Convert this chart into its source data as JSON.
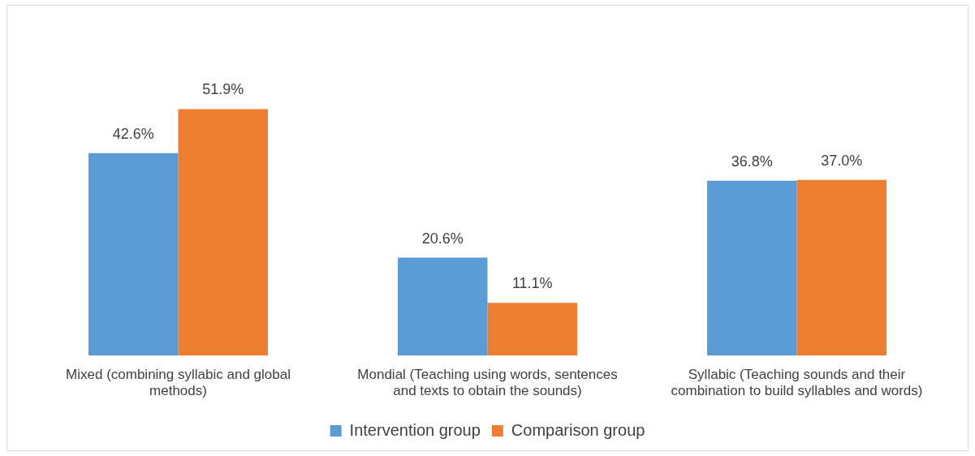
{
  "chart_data": {
    "type": "bar",
    "categories": [
      "Mixed (combining syllabic and global methods)",
      "Mondial (Teaching using words, sentences and texts to obtain the sounds)",
      "Syllabic (Teaching sounds and their combination to build syllables and words)"
    ],
    "series": [
      {
        "name": "Intervention group",
        "color": "#5b9bd5",
        "values": [
          42.6,
          20.6,
          36.8
        ],
        "value_labels": [
          "42.6%",
          "20.6%",
          "36.8%"
        ]
      },
      {
        "name": "Comparison group",
        "color": "#ed7d31",
        "values": [
          51.9,
          11.1,
          37.0
        ],
        "value_labels": [
          "51.9%",
          "11.1%",
          "37.0%"
        ]
      }
    ],
    "grid": false,
    "legend": "bottom",
    "tick_labels": "x"
  }
}
